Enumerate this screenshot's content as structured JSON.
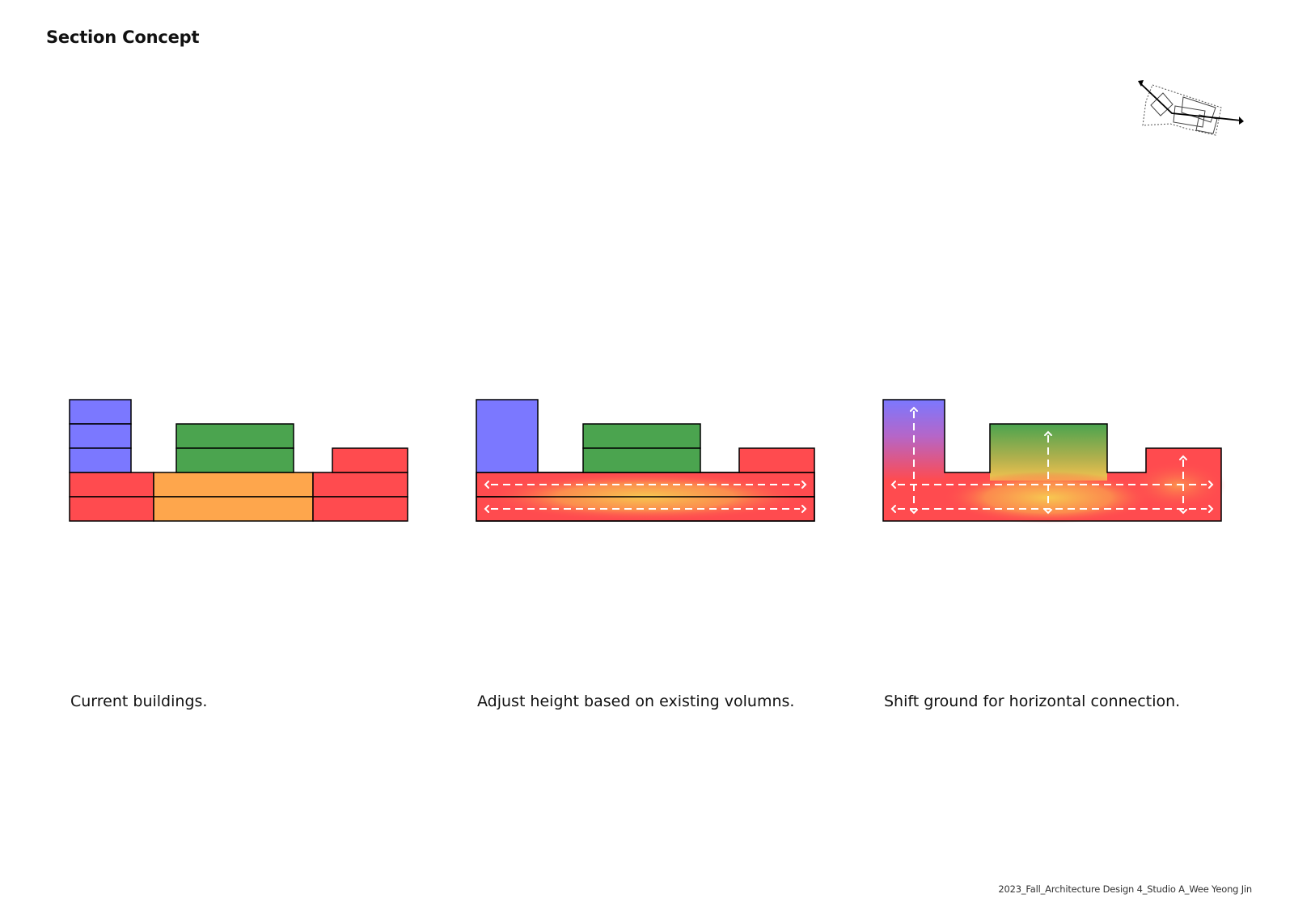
{
  "title": "Section Concept",
  "colors": {
    "blue": "#7b78ff",
    "green": "#4ba44f",
    "red": "#ff4b4f",
    "orange": "#fea64c",
    "yellow_glow": "#f7c850",
    "stroke": "#000000",
    "arrow": "#ffffff"
  },
  "panels": [
    {
      "caption": "Current buildings.",
      "icon": "stacked-floors"
    },
    {
      "caption": "Adjust height based on existing volumns.",
      "icon": "horizontal-flow-arrows"
    },
    {
      "caption": "Shift ground for horizontal connection.",
      "icon": "horizontal-and-vertical-flow-arrows"
    }
  ],
  "keyplan": {
    "icon": "section-cut-key-plan-icon"
  },
  "credit": "2023_Fall_Architecture Design 4_Studio A_Wee Yeong Jin"
}
